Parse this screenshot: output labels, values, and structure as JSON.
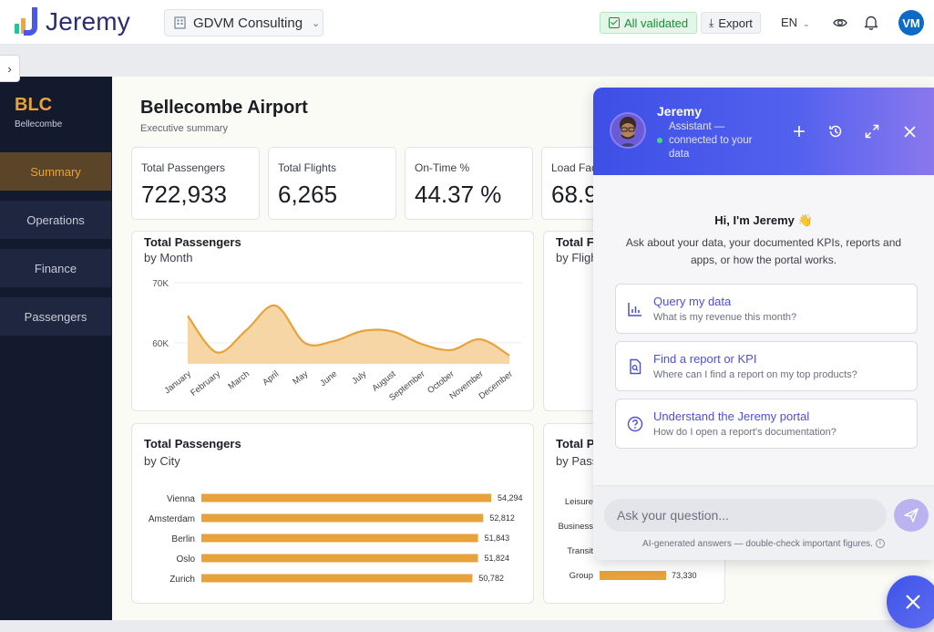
{
  "app": {
    "name": "Jeremy"
  },
  "topbar": {
    "org": "GDVM Consulting",
    "validated": "All validated",
    "export": "Export",
    "lang": "EN",
    "avatar_initials": "VM"
  },
  "nav": {
    "code": "BLC",
    "site": "Bellecombe",
    "items": [
      {
        "label": "Summary",
        "active": true
      },
      {
        "label": "Operations",
        "active": false
      },
      {
        "label": "Finance",
        "active": false
      },
      {
        "label": "Passengers",
        "active": false
      }
    ]
  },
  "page": {
    "title": "Bellecombe Airport",
    "subtitle": "Executive summary"
  },
  "kpis": [
    {
      "label": "Total Passengers",
      "value": "722,933"
    },
    {
      "label": "Total Flights",
      "value": "6,265"
    },
    {
      "label": "On-Time %",
      "value": "44.37 %"
    },
    {
      "label": "Load Fac",
      "value": "68.9"
    }
  ],
  "cards": {
    "by_month": {
      "title": "Total Passengers",
      "subtitle": "by Month"
    },
    "by_flight": {
      "title": "Total Fl",
      "subtitle": "by Fligh"
    },
    "by_city": {
      "title": "Total Passengers",
      "subtitle": "by City"
    },
    "by_purpose": {
      "title": "Total P",
      "subtitle": "by Pass"
    }
  },
  "chart_data": [
    {
      "type": "area",
      "title": "Total Passengers",
      "subtitle": "by Month",
      "categories": [
        "January",
        "February",
        "March",
        "April",
        "May",
        "June",
        "July",
        "August",
        "September",
        "October",
        "November",
        "December"
      ],
      "values": [
        64500,
        58400,
        62100,
        66200,
        60000,
        60300,
        62000,
        61900,
        59800,
        58800,
        60600,
        57900
      ],
      "yticks": [
        "70K",
        "60K"
      ],
      "ytick_values": [
        70000,
        60000
      ],
      "ylim": [
        56500,
        70000
      ],
      "color": "#e8a23b"
    },
    {
      "type": "bar",
      "orientation": "horizontal",
      "title": "Total Passengers",
      "subtitle": "by City",
      "categories": [
        "Vienna",
        "Amsterdam",
        "Berlin",
        "Oslo",
        "Zurich"
      ],
      "values": [
        54294,
        52812,
        51843,
        51824,
        50782
      ],
      "labels": [
        "54,294",
        "52,812",
        "51,843",
        "51,824",
        "50,782"
      ],
      "xlim": [
        0,
        54294
      ],
      "color": "#e8a23b"
    },
    {
      "type": "bar",
      "orientation": "horizontal",
      "title": "Total P",
      "subtitle": "by Pass",
      "categories": [
        "Leisure",
        "Business",
        "Transit",
        "Group"
      ],
      "values": [
        null,
        null,
        null,
        73330
      ],
      "labels": [
        "",
        "",
        "",
        "73,330"
      ],
      "color": "#e8a23b"
    }
  ],
  "chat": {
    "bot_name": "Jeremy",
    "status": "Assistant — connected to your data",
    "greeting": "Hi, I'm Jeremy 👋",
    "intro": "Ask about your data, your documented KPIs, reports and apps, or how the portal works.",
    "suggestions": [
      {
        "title": "Query my data",
        "desc": "What is my revenue this month?",
        "icon": "bar-chart-icon"
      },
      {
        "title": "Find a report or KPI",
        "desc": "Where can I find a report on my top products?",
        "icon": "document-search-icon"
      },
      {
        "title": "Understand the Jeremy portal",
        "desc": "How do I open a report's documentation?",
        "icon": "question-circle-icon"
      }
    ],
    "placeholder": "Ask your question...",
    "disclaimer": "AI-generated answers — double-check important figures."
  },
  "colors": {
    "accent": "#e8a23b",
    "brand": "#4a57e8",
    "nav_bg": "#141a2e"
  }
}
